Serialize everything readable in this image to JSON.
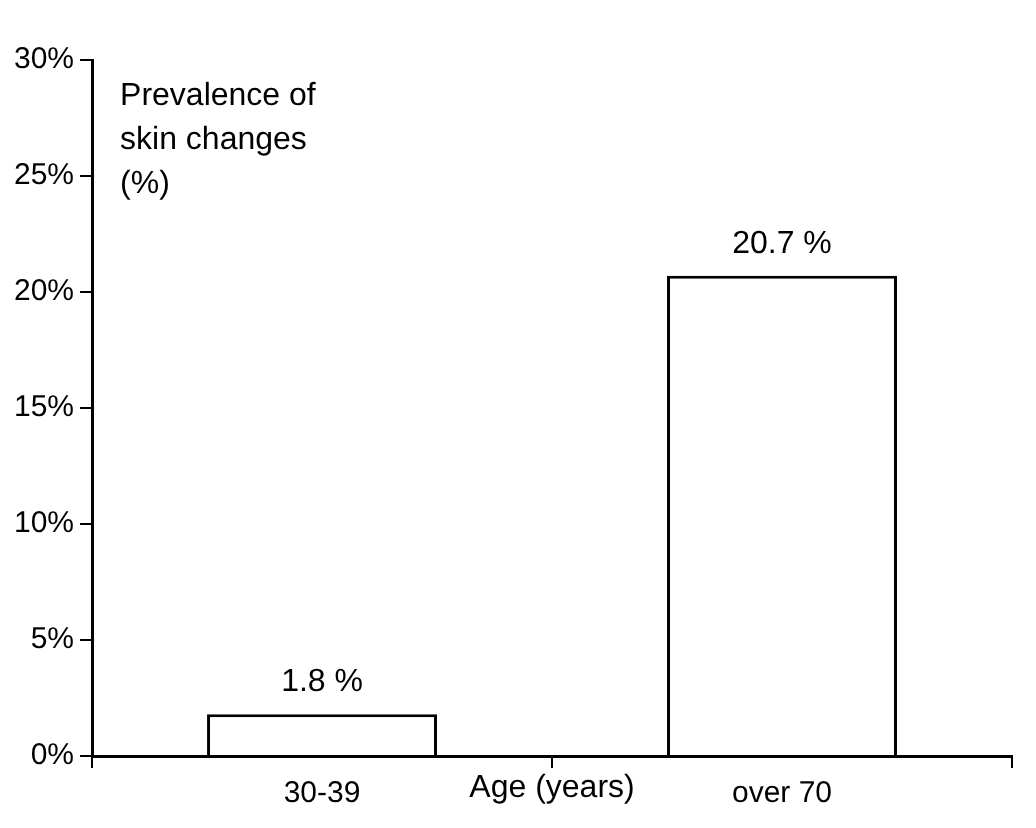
{
  "chart_data": {
    "type": "bar",
    "ylabel": "Prevalence of skin changes (%)",
    "xlabel": "Age (years)",
    "categories": [
      "30-39",
      "over 70"
    ],
    "values": [
      1.8,
      20.7
    ],
    "value_labels": [
      "1.8 %",
      "20.7 %"
    ],
    "color": "#ffffff",
    "ylim": [
      0,
      30
    ],
    "yticks": [
      {
        "value": 0,
        "label": "0%"
      },
      {
        "value": 5,
        "label": "5%"
      },
      {
        "value": 10,
        "label": "10%"
      },
      {
        "value": 15,
        "label": "15%"
      },
      {
        "value": 20,
        "label": "20%"
      },
      {
        "value": 25,
        "label": "25%"
      },
      {
        "value": 30,
        "label": "30%"
      }
    ],
    "grid": false,
    "legend": false
  }
}
